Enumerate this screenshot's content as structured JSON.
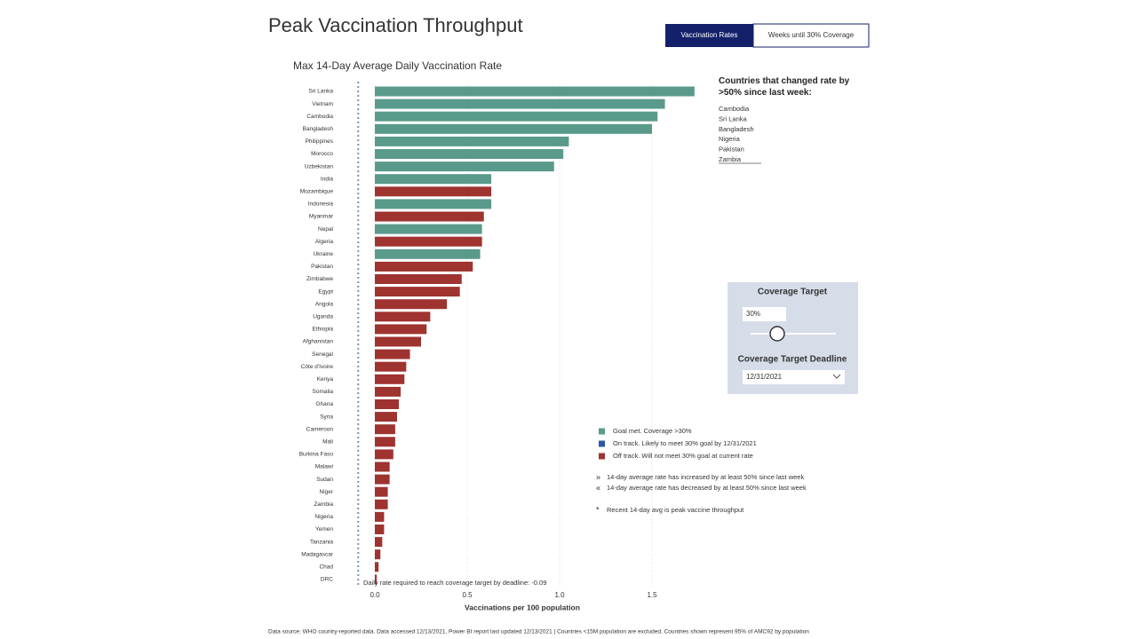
{
  "header": {
    "title": "Peak Vaccination Throughput"
  },
  "tabs": [
    "Vaccination Rates",
    "Weeks until 30% Coverage"
  ],
  "chart_data": {
    "type": "bar",
    "orientation": "horizontal",
    "title": "Max 14-Day Average Daily Vaccination Rate",
    "categories": [
      "Sri Lanka",
      "Vietnam",
      "Cambodia",
      "Bangladesh",
      "Philippines",
      "Morocco",
      "Uzbekistan",
      "India",
      "Mozambique",
      "Indonesia",
      "Myanmar",
      "Nepal",
      "Algeria",
      "Ukraine",
      "Pakistan",
      "Zimbabwe",
      "Egypt",
      "Angola",
      "Uganda",
      "Ethiopia",
      "Afghanistan",
      "Senegal",
      "Côte d'Ivoire",
      "Kenya",
      "Somalia",
      "Ghana",
      "Syria",
      "Cameroon",
      "Mali",
      "Burkina Faso",
      "Malawi",
      "Sudan",
      "Niger",
      "Zambia",
      "Nigeria",
      "Yemen",
      "Tanzania",
      "Madagascar",
      "Chad",
      "DRC"
    ],
    "values": [
      1.73,
      1.57,
      1.53,
      1.5,
      1.05,
      1.02,
      0.97,
      0.63,
      0.63,
      0.63,
      0.59,
      0.58,
      0.58,
      0.57,
      0.53,
      0.47,
      0.46,
      0.39,
      0.3,
      0.28,
      0.25,
      0.19,
      0.17,
      0.16,
      0.14,
      0.13,
      0.12,
      0.11,
      0.11,
      0.1,
      0.08,
      0.08,
      0.07,
      0.07,
      0.05,
      0.05,
      0.04,
      0.03,
      0.02,
      0.01
    ],
    "colors": [
      "#5a9a8b",
      "#5a9a8b",
      "#5a9a8b",
      "#5a9a8b",
      "#5a9a8b",
      "#5a9a8b",
      "#5a9a8b",
      "#5a9a8b",
      "#9e3330",
      "#5a9a8b",
      "#9e3330",
      "#5a9a8b",
      "#9e3330",
      "#5a9a8b",
      "#9e3330",
      "#9e3330",
      "#9e3330",
      "#9e3330",
      "#9e3330",
      "#9e3330",
      "#9e3330",
      "#9e3330",
      "#9e3330",
      "#9e3330",
      "#9e3330",
      "#9e3330",
      "#9e3330",
      "#9e3330",
      "#9e3330",
      "#9e3330",
      "#9e3330",
      "#9e3330",
      "#9e3330",
      "#9e3330",
      "#9e3330",
      "#9e3330",
      "#9e3330",
      "#9e3330",
      "#9e3330",
      "#9e3330"
    ],
    "xlim": [
      -0.1,
      1.8
    ],
    "xticks": [
      {
        "value": 0,
        "label": "0.0"
      },
      0.5,
      {
        "value": 1,
        "label": "1.0"
      },
      1.5
    ],
    "x_label": "Vaccinations per 100 population",
    "reference_line": {
      "value": -0.09,
      "label": "Daily rate required to reach coverage target by deadline: -0.09"
    },
    "grid": true
  },
  "changed_panel": {
    "title": "Countries that changed rate by >50% since last week:",
    "countries": [
      "Cambodia",
      "Sri Lanka",
      "Bangladesh",
      "Nigeria",
      "Pakistan",
      "Zambia"
    ]
  },
  "filters": {
    "target_title": "Coverage Target",
    "target_value": "30%",
    "deadline_title": "Coverage Target Deadline",
    "deadline_value": "12/31/2021"
  },
  "legend": {
    "status": [
      {
        "color": "#5a9a8b",
        "label": "Goal met. Coverage >30%"
      },
      {
        "color": "#2f55a4",
        "label": "On track. Likely to meet 30% goal by 12/31/2021"
      },
      {
        "color": "#9e3330",
        "label": "Off track. Will not meet 30% goal at current rate"
      }
    ],
    "notes": [
      {
        "symbol": "»",
        "color": "#888888",
        "label": "14-day average rate has increased by at least 50% since last week"
      },
      {
        "symbol": "«",
        "color": "#888888",
        "label": "14-day average rate has decreased by at least 50% since last week"
      },
      {
        "symbol": "*",
        "color": "#e0b080",
        "label": "Recent 14-day avg is peak vaccine throughput"
      }
    ]
  },
  "footer": "Data source: WHO country-reported data. Data accessed 12/13/2021. Power BI report last updated 12/13/2021 | Countries <15M population are excluded. Countries shown represent 95% of AMC92 by population"
}
